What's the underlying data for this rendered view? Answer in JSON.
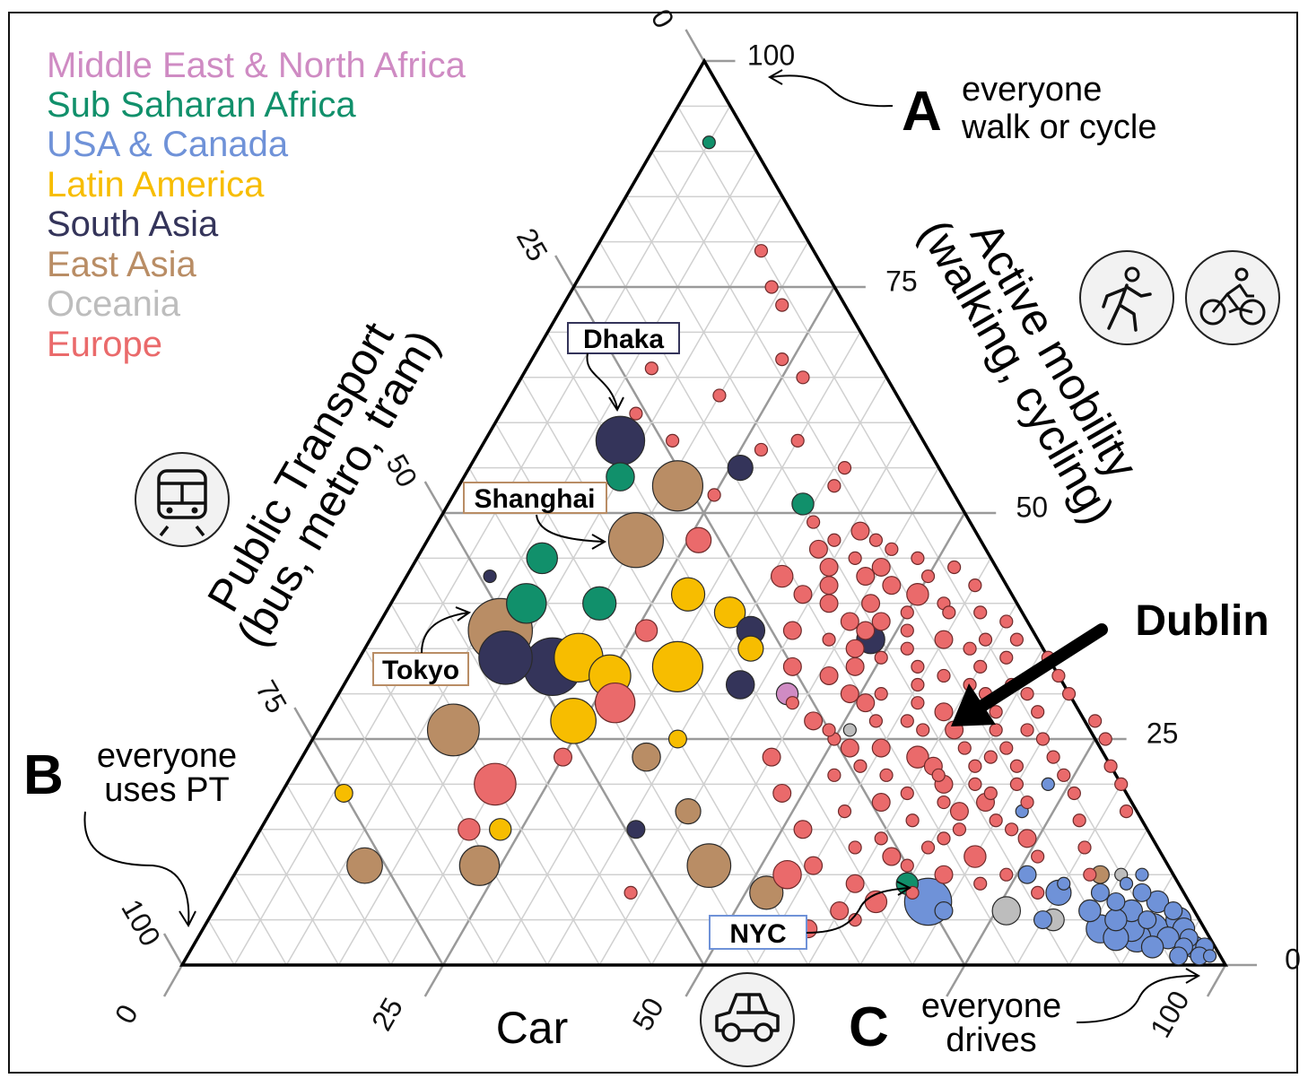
{
  "chart_data": {
    "type": "scatter",
    "subtype": "ternary",
    "axes": {
      "active": {
        "label_line1": "Active mobility",
        "label_line2": "(walking, cycling)",
        "ticks": [
          "0",
          "25",
          "50",
          "75",
          "100"
        ]
      },
      "pt": {
        "label_line1": "Public Transport",
        "label_line2": "(bus, metro, tram)",
        "ticks": [
          "0",
          "25",
          "50",
          "75",
          "100"
        ]
      },
      "car": {
        "label": "Car",
        "ticks": [
          "0",
          "25",
          "50",
          "100"
        ]
      }
    },
    "regions": [
      {
        "id": "MENA",
        "name": "Middle East & North Africa",
        "color": "#cf8bc3"
      },
      {
        "id": "SSA",
        "name": "Sub Saharan Africa",
        "color": "#11906b"
      },
      {
        "id": "NA",
        "name": "USA & Canada",
        "color": "#6f92d8"
      },
      {
        "id": "LA",
        "name": "Latin America",
        "color": "#f7bd00"
      },
      {
        "id": "SA",
        "name": "South Asia",
        "color": "#34345a"
      },
      {
        "id": "EA",
        "name": "East Asia",
        "color": "#b98d65"
      },
      {
        "id": "OC",
        "name": "Oceania",
        "color": "#bdbdbd"
      },
      {
        "id": "EU",
        "name": "Europe",
        "color": "#ea6a6b"
      }
    ],
    "point_format": [
      "active_pct",
      "car_pct",
      "region",
      "size"
    ],
    "points": [
      [
        91,
        5,
        "SSA",
        1
      ],
      [
        58,
        13,
        "SA",
        15
      ],
      [
        54,
        15,
        "SSA",
        5
      ],
      [
        53,
        21,
        "EA",
        16
      ],
      [
        55,
        26,
        "SA",
        4
      ],
      [
        47,
        20,
        "EA",
        19
      ],
      [
        45,
        12,
        "SSA",
        6
      ],
      [
        43,
        8,
        "SA",
        1
      ],
      [
        40,
        13,
        "SSA",
        10
      ],
      [
        40,
        20,
        "SSA",
        7
      ],
      [
        37,
        12,
        "EA",
        26
      ],
      [
        34,
        14,
        "SA",
        18
      ],
      [
        33,
        19,
        "SA",
        21
      ],
      [
        34,
        21,
        "LA",
        15
      ],
      [
        32,
        25,
        "LA",
        11
      ],
      [
        33,
        31,
        "LA",
        16
      ],
      [
        41,
        28,
        "LA",
        7
      ],
      [
        39,
        33,
        "LA",
        6
      ],
      [
        37,
        36,
        "SA",
        5
      ],
      [
        35,
        37,
        "LA",
        4
      ],
      [
        31,
        38,
        "SA",
        5
      ],
      [
        27,
        24,
        "LA",
        13
      ],
      [
        29,
        27,
        "EU",
        10
      ],
      [
        26,
        13,
        "EA",
        17
      ],
      [
        20,
        20,
        "EU",
        11
      ],
      [
        19,
        6,
        "LA",
        2
      ],
      [
        11,
        12,
        "EA",
        8
      ],
      [
        11,
        23,
        "EA",
        10
      ],
      [
        15,
        20,
        "EU",
        3
      ],
      [
        15,
        23,
        "LA",
        3
      ],
      [
        15,
        36,
        "SA",
        2
      ],
      [
        17,
        40,
        "EA",
        4
      ],
      [
        23,
        33,
        "EA",
        5
      ],
      [
        11,
        45,
        "EA",
        12
      ],
      [
        8,
        52,
        "EA",
        7
      ],
      [
        8,
        39,
        "EU",
        1
      ],
      [
        23,
        25,
        "EU",
        2
      ],
      [
        10,
        53,
        "EU",
        5
      ],
      [
        25,
        35,
        "LA",
        2
      ],
      [
        37,
        26,
        "EU",
        3
      ],
      [
        47,
        26,
        "EU",
        4
      ],
      [
        66,
        12,
        "EU",
        1
      ],
      [
        79,
        16,
        "EU",
        1
      ],
      [
        75,
        19,
        "EU",
        1
      ],
      [
        73,
        21,
        "EU",
        1
      ],
      [
        67,
        24,
        "EU",
        1
      ],
      [
        65,
        27,
        "EU",
        1
      ],
      [
        63,
        20,
        "EU",
        1
      ],
      [
        61,
        13,
        "EU",
        1
      ],
      [
        58,
        18,
        "EU",
        1
      ],
      [
        58,
        30,
        "EU",
        1
      ],
      [
        57,
        27,
        "EU",
        1
      ],
      [
        52,
        25,
        "EU",
        1
      ],
      [
        55,
        36,
        "EU",
        1
      ],
      [
        53,
        36,
        "EU",
        1
      ],
      [
        51,
        34,
        "SSA",
        3
      ],
      [
        26,
        51,
        "OC",
        1
      ],
      [
        36,
        48,
        "SA",
        5
      ],
      [
        30,
        43,
        "MENA",
        3
      ],
      [
        7,
        68,
        "NA",
        14
      ],
      [
        9,
        65,
        "SSA",
        3
      ],
      [
        6,
        76,
        "OC",
        5
      ],
      [
        10,
        83,
        "EA",
        2
      ],
      [
        10,
        85,
        "OC",
        1
      ],
      [
        5,
        81,
        "OC",
        3
      ],
      [
        20,
        73,
        "NA",
        1
      ],
      [
        17,
        72,
        "NA",
        1
      ],
      [
        10,
        76,
        "NA",
        2
      ],
      [
        8,
        80,
        "NA",
        4
      ],
      [
        4,
        86,
        "NA",
        5
      ],
      [
        8,
        88,
        "NA",
        2
      ],
      [
        7,
        90,
        "NA",
        3
      ],
      [
        6,
        92,
        "NA",
        2
      ],
      [
        5,
        93,
        "NA",
        4
      ],
      [
        4,
        94,
        "NA",
        3
      ],
      [
        3,
        95,
        "NA",
        2
      ],
      [
        2,
        97,
        "NA",
        2
      ],
      [
        1,
        98,
        "NA",
        1
      ],
      [
        6,
        88,
        "NA",
        3
      ],
      [
        5,
        90,
        "NA",
        2
      ],
      [
        4,
        91,
        "NA",
        6
      ],
      [
        3,
        93,
        "NA",
        3
      ],
      [
        2,
        95,
        "NA",
        2
      ],
      [
        7,
        86,
        "NA",
        2
      ],
      [
        5,
        87,
        "NA",
        3
      ],
      [
        4,
        89,
        "NA",
        4
      ],
      [
        3,
        90,
        "NA",
        5
      ],
      [
        2,
        92,
        "NA",
        3
      ],
      [
        1,
        95,
        "NA",
        2
      ],
      [
        9,
        86,
        "NA",
        1
      ],
      [
        8,
        84,
        "NA",
        2
      ],
      [
        6,
        84,
        "NA",
        3
      ],
      [
        10,
        87,
        "NA",
        1
      ],
      [
        3,
        88,
        "NA",
        4
      ],
      [
        1,
        97,
        "NA",
        2
      ],
      [
        2,
        96,
        "NA",
        3
      ],
      [
        5,
        80,
        "NA",
        2
      ],
      [
        9,
        80,
        "NA",
        1
      ],
      [
        6,
        70,
        "NA",
        2
      ],
      [
        49,
        36,
        "EU",
        1
      ],
      [
        48,
        41,
        "EU",
        2
      ],
      [
        47,
        43,
        "EU",
        1
      ],
      [
        46,
        38,
        "EU",
        2
      ],
      [
        46,
        45,
        "EU",
        1
      ],
      [
        45,
        48,
        "EU",
        1
      ],
      [
        44,
        40,
        "EU",
        2
      ],
      [
        44,
        52,
        "EU",
        1
      ],
      [
        43,
        36,
        "EU",
        3
      ],
      [
        43,
        44,
        "EU",
        2
      ],
      [
        42,
        47,
        "EU",
        2
      ],
      [
        42,
        55,
        "EU",
        1
      ],
      [
        41,
        39,
        "EU",
        2
      ],
      [
        41,
        50,
        "EU",
        3
      ],
      [
        40,
        42,
        "EU",
        2
      ],
      [
        40,
        53,
        "EU",
        1
      ],
      [
        39,
        57,
        "EU",
        1
      ],
      [
        38,
        45,
        "EU",
        2
      ],
      [
        38,
        48,
        "EU",
        2
      ],
      [
        38,
        60,
        "EU",
        1
      ],
      [
        37,
        40,
        "EU",
        2
      ],
      [
        37,
        51,
        "EU",
        1
      ],
      [
        36,
        55,
        "EU",
        2
      ],
      [
        36,
        44,
        "EU",
        1
      ],
      [
        35,
        58,
        "EU",
        1
      ],
      [
        35,
        47,
        "EU",
        2
      ],
      [
        34,
        50,
        "EU",
        1
      ],
      [
        34,
        62,
        "EU",
        1
      ],
      [
        33,
        42,
        "EU",
        2
      ],
      [
        33,
        54,
        "EU",
        1
      ],
      [
        32,
        57,
        "EU",
        1
      ],
      [
        32,
        46,
        "EU",
        2
      ],
      [
        31,
        60,
        "EU",
        1
      ],
      [
        31,
        64,
        "EU",
        1
      ],
      [
        30,
        49,
        "EU",
        2
      ],
      [
        30,
        52,
        "EU",
        1
      ],
      [
        30,
        66,
        "EU",
        1
      ],
      [
        29,
        44,
        "EU",
        1
      ],
      [
        29,
        56,
        "EU",
        1
      ],
      [
        28,
        59,
        "EU",
        2
      ],
      [
        28,
        62,
        "EU",
        1
      ],
      [
        28,
        68,
        "EU",
        1
      ],
      [
        27,
        47,
        "EU",
        2
      ],
      [
        27,
        53,
        "EU",
        1
      ],
      [
        26,
        58,
        "EU",
        1
      ],
      [
        26,
        61,
        "EU",
        2
      ],
      [
        26,
        65,
        "EU",
        1
      ],
      [
        25,
        50,
        "EU",
        1
      ],
      [
        25,
        70,
        "EU",
        1
      ],
      [
        24,
        55,
        "EU",
        2
      ],
      [
        24,
        63,
        "EU",
        1
      ],
      [
        24,
        67,
        "EU",
        1
      ],
      [
        23,
        45,
        "EU",
        2
      ],
      [
        23,
        59,
        "EU",
        3
      ],
      [
        23,
        72,
        "EU",
        1
      ],
      [
        22,
        61,
        "EU",
        2
      ],
      [
        22,
        65,
        "EU",
        1
      ],
      [
        22,
        69,
        "EU",
        1
      ],
      [
        21,
        52,
        "EU",
        1
      ],
      [
        21,
        57,
        "EU",
        1
      ],
      [
        21,
        74,
        "EU",
        1
      ],
      [
        20,
        63,
        "EU",
        2
      ],
      [
        20,
        66,
        "EU",
        1
      ],
      [
        20,
        70,
        "EU",
        1
      ],
      [
        19,
        48,
        "EU",
        2
      ],
      [
        19,
        60,
        "EU",
        1
      ],
      [
        19,
        76,
        "EU",
        1
      ],
      [
        18,
        64,
        "EU",
        1
      ],
      [
        18,
        68,
        "EU",
        2
      ],
      [
        18,
        72,
        "EU",
        1
      ],
      [
        17,
        55,
        "EU",
        1
      ],
      [
        17,
        66,
        "EU",
        2
      ],
      [
        16,
        62,
        "EU",
        1
      ],
      [
        16,
        70,
        "EU",
        1
      ],
      [
        16,
        78,
        "EU",
        1
      ],
      [
        15,
        52,
        "EU",
        2
      ],
      [
        15,
        67,
        "EU",
        1
      ],
      [
        14,
        60,
        "EU",
        1
      ],
      [
        14,
        74,
        "EU",
        2
      ],
      [
        13,
        58,
        "EU",
        1
      ],
      [
        13,
        65,
        "EU",
        1
      ],
      [
        13,
        80,
        "EU",
        1
      ],
      [
        12,
        70,
        "EU",
        3
      ],
      [
        12,
        76,
        "EU",
        1
      ],
      [
        11,
        55,
        "EU",
        2
      ],
      [
        11,
        64,
        "EU",
        1
      ],
      [
        10,
        68,
        "EU",
        2
      ],
      [
        10,
        82,
        "EU",
        1
      ],
      [
        9,
        72,
        "EU",
        1
      ],
      [
        9,
        60,
        "EU",
        2
      ],
      [
        8,
        66,
        "EU",
        1
      ],
      [
        7,
        63,
        "EU",
        3
      ],
      [
        6,
        60,
        "EU",
        2
      ],
      [
        5,
        62,
        "EU",
        1
      ],
      [
        4,
        58,
        "EU",
        2
      ],
      [
        36,
        62,
        "EU",
        1
      ],
      [
        34,
        66,
        "EU",
        1
      ],
      [
        32,
        68,
        "EU",
        1
      ],
      [
        30,
        70,
        "EU",
        1
      ],
      [
        27,
        74,
        "EU",
        1
      ],
      [
        25,
        76,
        "EU",
        1
      ],
      [
        22,
        78,
        "EU",
        1
      ],
      [
        20,
        80,
        "EU",
        1
      ],
      [
        17,
        82,
        "EU",
        1
      ],
      [
        44,
        45,
        "EU",
        2
      ],
      [
        43,
        50,
        "EU",
        1
      ],
      [
        40,
        46,
        "EU",
        2
      ],
      [
        39,
        50,
        "EU",
        1
      ],
      [
        37,
        47,
        "EU",
        2
      ],
      [
        35,
        52,
        "EU",
        1
      ],
      [
        33,
        48,
        "EU",
        2
      ],
      [
        31,
        55,
        "EU",
        1
      ],
      [
        29,
        51,
        "EU",
        2
      ],
      [
        27,
        56,
        "EU",
        1
      ],
      [
        26,
        49,
        "EU",
        1
      ],
      [
        24,
        52,
        "EU",
        2
      ],
      [
        22,
        54,
        "EU",
        1
      ],
      [
        21,
        62,
        "EU",
        1
      ],
      [
        19,
        68,
        "EU",
        1
      ],
      [
        18,
        58,
        "EU",
        2
      ],
      [
        15,
        72,
        "EU",
        1
      ],
      [
        14,
        66,
        "EU",
        1
      ],
      [
        12,
        62,
        "EU",
        2
      ],
      [
        10,
        74,
        "EU",
        1
      ],
      [
        8,
        78,
        "EU",
        1
      ],
      [
        47,
        39,
        "EU",
        1
      ],
      [
        45,
        42,
        "EU",
        1
      ],
      [
        42,
        41,
        "EU",
        2
      ],
      [
        39,
        54,
        "EU",
        1
      ],
      [
        36,
        59,
        "EU",
        1
      ],
      [
        33,
        60,
        "EU",
        1
      ],
      [
        30,
        62,
        "EU",
        1
      ],
      [
        28,
        64,
        "EU",
        1
      ],
      [
        26,
        68,
        "EU",
        1
      ],
      [
        23,
        66,
        "EU",
        1
      ]
    ],
    "city_labels": [
      {
        "name": "Dhaka",
        "region": "SA"
      },
      {
        "name": "Shanghai",
        "region": "EA"
      },
      {
        "name": "Tokyo",
        "region": "EA"
      },
      {
        "name": "NYC",
        "region": "NA"
      }
    ],
    "callout": "Dublin",
    "corners": {
      "A": {
        "letter": "A",
        "line1": "everyone",
        "line2": "walk or cycle"
      },
      "B": {
        "letter": "B",
        "line1": "everyone",
        "line2": "uses PT"
      },
      "C": {
        "letter": "C",
        "line1": "everyone",
        "line2": "drives"
      }
    },
    "icons": [
      "walking-icon",
      "bicycle-icon",
      "train-icon",
      "car-icon"
    ]
  }
}
